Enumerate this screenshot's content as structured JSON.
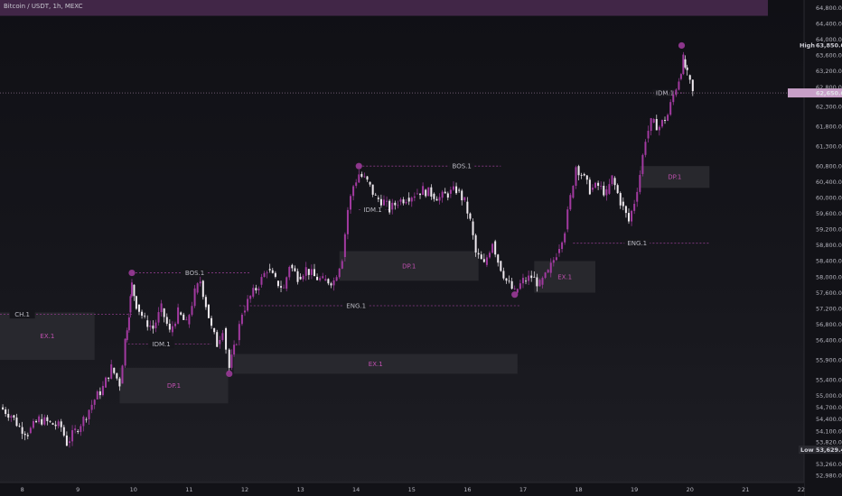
{
  "header": {
    "title": "Bitcoin / USDT, 1h, MEXC"
  },
  "colors": {
    "candle_bull": "#a23aa0",
    "candle_bear": "#f0eaf0",
    "zone_fill": "#2a2a30",
    "zone_text": "#c050b0",
    "line": "#8a3a88",
    "top_zone": "#4a2a50",
    "price_tag": "#c8a0c8"
  },
  "chart_data": {
    "type": "candlestick",
    "title": "Bitcoin / USDT, 1h, MEXC",
    "x_ticks": [
      "8",
      "9",
      "10",
      "11",
      "12",
      "13",
      "14",
      "15",
      "16",
      "17",
      "18",
      "19",
      "20",
      "21",
      "22"
    ],
    "y_ticks": [
      "64,800.00",
      "64,400.00",
      "64,000.00",
      "63,600.00",
      "63,200.00",
      "62,800.00",
      "62,300.00",
      "61,800.00",
      "61,300.00",
      "60,800.00",
      "60,400.00",
      "60,000.00",
      "59,600.00",
      "59,200.00",
      "58,800.00",
      "58,400.00",
      "58,000.00",
      "57,600.00",
      "57,200.00",
      "56,800.00",
      "56,400.00",
      "55,900.00",
      "55,400.00",
      "55,000.00",
      "54,700.00",
      "54,400.00",
      "54,100.00",
      "53,820.00",
      "53,260.00",
      "52,980.00"
    ],
    "ylim": [
      52800,
      65000
    ],
    "xlim": [
      7.6,
      22.05
    ],
    "high": {
      "label": "High",
      "value": "63,850.00"
    },
    "low": {
      "label": "Low",
      "value": "53,629.40"
    },
    "current_price": "62,650.00",
    "zones": [
      {
        "label": "",
        "x0": 7.6,
        "x1": 21.4,
        "y0": 64600,
        "y1": 65000,
        "kind": "top"
      },
      {
        "label": "EX.1",
        "x0": 7.6,
        "x1": 9.3,
        "y0": 55900,
        "y1": 57100
      },
      {
        "label": "DP.1",
        "x0": 9.75,
        "x1": 11.7,
        "y0": 54800,
        "y1": 55700
      },
      {
        "label": "EX.1",
        "x0": 11.8,
        "x1": 16.9,
        "y0": 55550,
        "y1": 56050
      },
      {
        "label": "DP.1",
        "x0": 13.7,
        "x1": 16.2,
        "y0": 57900,
        "y1": 58650
      },
      {
        "label": "EX.1",
        "x0": 17.2,
        "x1": 18.3,
        "y0": 57600,
        "y1": 58400
      },
      {
        "label": "DP.1",
        "x0": 19.1,
        "x1": 20.35,
        "y0": 60250,
        "y1": 60800
      }
    ],
    "levels": [
      {
        "label": "CH.1",
        "x0": 7.6,
        "x1": 10.0,
        "y": 57050,
        "label_x": 8.0
      },
      {
        "label": "BOS.1",
        "x0": 9.97,
        "x1": 12.1,
        "y": 58100,
        "label_x": 11.1
      },
      {
        "label": "IDM.1",
        "x0": 9.9,
        "x1": 11.4,
        "y": 56300,
        "label_x": 10.5
      },
      {
        "label": "ENG.1",
        "x0": 11.9,
        "x1": 16.95,
        "y": 57270,
        "label_x": 14.0
      },
      {
        "label": "BOS.1",
        "x0": 14.05,
        "x1": 16.6,
        "y": 60800,
        "label_x": 15.9
      },
      {
        "label": "IDM.1",
        "x0": 14.05,
        "x1": 14.6,
        "y": 59700,
        "label_x": 14.3
      },
      {
        "label": "ENG.1",
        "x0": 17.9,
        "x1": 20.35,
        "y": 58850,
        "label_x": 19.05
      },
      {
        "label": "IDM.1",
        "x0": 19.5,
        "x1": 19.9,
        "y": 62650,
        "label_x": 19.55
      }
    ],
    "markers": [
      {
        "x": 9.97,
        "y": 58100
      },
      {
        "x": 11.72,
        "y": 55550
      },
      {
        "x": 14.05,
        "y": 60800
      },
      {
        "x": 16.85,
        "y": 57550
      },
      {
        "x": 19.85,
        "y": 63850
      }
    ],
    "close_path": [
      [
        7.6,
        54700
      ],
      [
        7.8,
        54500
      ],
      [
        7.95,
        54200
      ],
      [
        8.1,
        54050
      ],
      [
        8.3,
        54400
      ],
      [
        8.5,
        54300
      ],
      [
        8.7,
        54200
      ],
      [
        8.8,
        53800
      ],
      [
        8.95,
        54100
      ],
      [
        9.1,
        54400
      ],
      [
        9.3,
        54900
      ],
      [
        9.45,
        55200
      ],
      [
        9.6,
        55700
      ],
      [
        9.75,
        55300
      ],
      [
        9.85,
        56400
      ],
      [
        9.92,
        57100
      ],
      [
        9.97,
        57800
      ],
      [
        10.05,
        57300
      ],
      [
        10.2,
        56900
      ],
      [
        10.35,
        56700
      ],
      [
        10.5,
        57200
      ],
      [
        10.65,
        56600
      ],
      [
        10.8,
        57100
      ],
      [
        10.95,
        56800
      ],
      [
        11.1,
        57600
      ],
      [
        11.2,
        57900
      ],
      [
        11.3,
        57300
      ],
      [
        11.4,
        56700
      ],
      [
        11.5,
        56300
      ],
      [
        11.6,
        56700
      ],
      [
        11.72,
        55700
      ],
      [
        11.85,
        56400
      ],
      [
        11.95,
        57100
      ],
      [
        12.1,
        57500
      ],
      [
        12.25,
        57800
      ],
      [
        12.4,
        58200
      ],
      [
        12.55,
        57900
      ],
      [
        12.7,
        57700
      ],
      [
        12.8,
        58300
      ],
      [
        12.95,
        58000
      ],
      [
        13.1,
        58200
      ],
      [
        13.25,
        58000
      ],
      [
        13.4,
        57900
      ],
      [
        13.6,
        57900
      ],
      [
        13.75,
        58500
      ],
      [
        13.85,
        59700
      ],
      [
        13.95,
        60300
      ],
      [
        14.05,
        60600
      ],
      [
        14.2,
        60400
      ],
      [
        14.35,
        60000
      ],
      [
        14.5,
        59900
      ],
      [
        14.6,
        59700
      ],
      [
        14.75,
        59900
      ],
      [
        14.9,
        60000
      ],
      [
        15.05,
        60100
      ],
      [
        15.2,
        60200
      ],
      [
        15.35,
        60100
      ],
      [
        15.5,
        60000
      ],
      [
        15.65,
        60100
      ],
      [
        15.8,
        60200
      ],
      [
        15.95,
        59900
      ],
      [
        16.05,
        59400
      ],
      [
        16.15,
        58600
      ],
      [
        16.3,
        58300
      ],
      [
        16.45,
        58900
      ],
      [
        16.55,
        58400
      ],
      [
        16.7,
        57900
      ],
      [
        16.85,
        57600
      ],
      [
        17.0,
        57900
      ],
      [
        17.15,
        58000
      ],
      [
        17.3,
        57800
      ],
      [
        17.45,
        58100
      ],
      [
        17.6,
        58600
      ],
      [
        17.75,
        59200
      ],
      [
        17.85,
        60000
      ],
      [
        17.95,
        60800
      ],
      [
        18.05,
        60600
      ],
      [
        18.2,
        60200
      ],
      [
        18.35,
        60300
      ],
      [
        18.5,
        60100
      ],
      [
        18.6,
        60500
      ],
      [
        18.75,
        59900
      ],
      [
        18.9,
        59400
      ],
      [
        19.0,
        59900
      ],
      [
        19.1,
        60600
      ],
      [
        19.2,
        61500
      ],
      [
        19.3,
        61900
      ],
      [
        19.45,
        61800
      ],
      [
        19.6,
        62100
      ],
      [
        19.7,
        62600
      ],
      [
        19.8,
        63000
      ],
      [
        19.88,
        63500
      ],
      [
        19.95,
        63100
      ],
      [
        20.05,
        62650
      ]
    ]
  }
}
